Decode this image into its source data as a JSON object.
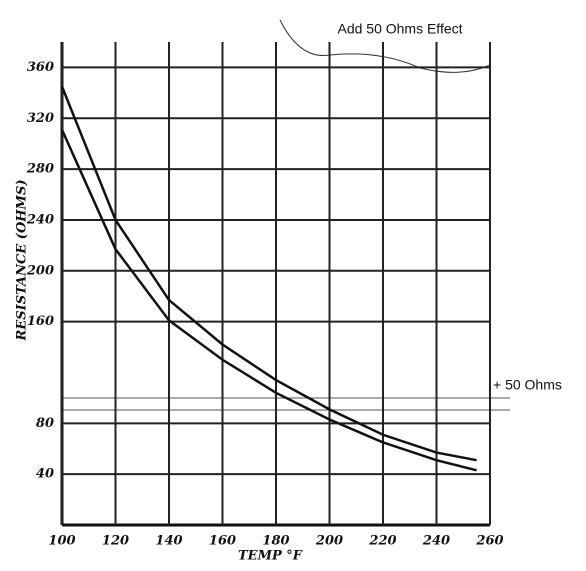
{
  "chart_data": {
    "type": "line",
    "title": "Add 50 Ohms Effect",
    "annotation": "+ 50 Ohms",
    "x_label": "TEMP °F",
    "y_label": "RESISTANCE (OHMS)",
    "x": [
      100,
      120,
      140,
      160,
      180,
      200,
      220,
      240,
      255
    ],
    "series": [
      {
        "color": "#111111",
        "values": [
          345,
          240,
          177,
          142,
          114,
          91,
          71,
          57,
          51
        ]
      },
      {
        "color": "#111111",
        "values": [
          311,
          217,
          161,
          130,
          104,
          83,
          65,
          51,
          43
        ]
      }
    ],
    "xlim": [
      100,
      260
    ],
    "xticks": [
      100,
      120,
      140,
      160,
      180,
      200,
      220,
      240,
      260
    ],
    "ylim": [
      0,
      380
    ],
    "yticks": [
      40,
      80,
      160,
      200,
      240,
      280,
      320,
      360
    ],
    "grid": true
  }
}
